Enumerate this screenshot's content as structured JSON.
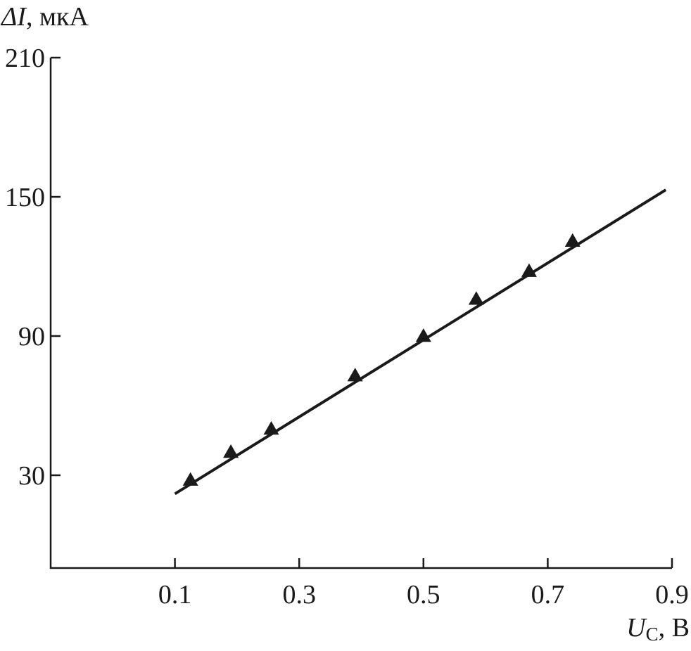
{
  "chart_data": {
    "type": "line",
    "ylabel_symbol": "ΔI",
    "ylabel_unit": ", мкА",
    "xlabel_symbol": "U",
    "xlabel_sub": "С",
    "xlabel_unit": ", В",
    "xlim": [
      -0.1,
      0.9
    ],
    "ylim": [
      -10,
      210
    ],
    "xticks": [
      0.1,
      0.3,
      0.5,
      0.7,
      0.9
    ],
    "xtick_labels": [
      "0.1",
      "0.3",
      "0.5",
      "0.7",
      "0.9"
    ],
    "yticks": [
      30,
      90,
      150,
      210
    ],
    "ytick_labels": [
      "30",
      "90",
      "150",
      "210"
    ],
    "grid": false,
    "series": [
      {
        "marker": "triangle",
        "x": [
          0.125,
          0.19,
          0.255,
          0.39,
          0.5,
          0.585,
          0.67,
          0.74
        ],
        "y": [
          28,
          40,
          50,
          73,
          90,
          106,
          118,
          131
        ]
      }
    ],
    "fit_line": {
      "x": [
        0.1,
        0.89
      ],
      "y": [
        22,
        153
      ]
    }
  }
}
